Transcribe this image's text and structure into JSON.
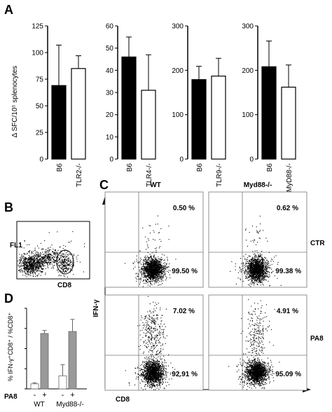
{
  "panels": {
    "A": "A",
    "B": "B",
    "C": "C",
    "D": "D"
  },
  "chart_data": [
    {
      "panel": "A",
      "type": "bar",
      "ylabel": "Δ SFC/10⁵ splenocytes",
      "series_colors": [
        "#000000",
        "#ffffff"
      ],
      "subplots": [
        {
          "categories": [
            "B6",
            "TLR2-/-"
          ],
          "values": [
            69,
            85
          ],
          "errors": [
            38,
            12
          ],
          "ylim": [
            0,
            125
          ],
          "yticks": [
            "0",
            "25",
            "50",
            "75",
            "100",
            "125"
          ]
        },
        {
          "categories": [
            "B6",
            "TLR4-/-"
          ],
          "values": [
            46,
            31
          ],
          "errors": [
            9,
            16
          ],
          "ylim": [
            0,
            60
          ],
          "yticks": [
            "0",
            "10",
            "20",
            "30",
            "40",
            "50",
            "60"
          ]
        },
        {
          "categories": [
            "B6",
            "TLR9-/-"
          ],
          "values": [
            179,
            187
          ],
          "errors": [
            30,
            40
          ],
          "ylim": [
            0,
            300
          ],
          "yticks": [
            "0",
            "100",
            "200",
            "300"
          ]
        },
        {
          "categories": [
            "B6",
            "MyD88-/-"
          ],
          "values": [
            208,
            162
          ],
          "errors": [
            58,
            50
          ],
          "ylim": [
            0,
            300
          ],
          "yticks": [
            "0",
            "100",
            "200",
            "300"
          ]
        }
      ]
    },
    {
      "panel": "B",
      "type": "scatter",
      "xlabel": "CD8",
      "ylabel": "FL1"
    },
    {
      "panel": "C",
      "type": "scatter",
      "xlabel": "CD8",
      "ylabel": "IFN-γ",
      "columns": [
        "WT",
        "Myd88-/-"
      ],
      "rows": [
        "CTR",
        "PA8"
      ],
      "quadrants": [
        {
          "row": "CTR",
          "column": "WT",
          "upper": "0.50 %",
          "lower": "99.50 %"
        },
        {
          "row": "CTR",
          "column": "Myd88-/-",
          "upper": "0.62 %",
          "lower": "99.38 %"
        },
        {
          "row": "PA8",
          "column": "WT",
          "upper": "7.02 %",
          "lower": "92.91 %"
        },
        {
          "row": "PA8",
          "column": "Myd88-/-",
          "upper": "4.91 %",
          "lower": "95.09 %"
        }
      ]
    },
    {
      "panel": "D",
      "type": "bar",
      "ylabel": "% IFN-γ⁺CD8⁺ / %CD8⁺",
      "row_label": "PA8",
      "groups": [
        "WT",
        "Myd88-/-"
      ],
      "signs": [
        "-",
        "+",
        "-",
        "+"
      ],
      "values": [
        0.5,
        5.5,
        1.3,
        5.7
      ],
      "errors": [
        0.1,
        0.3,
        1.1,
        1.2
      ],
      "colors": [
        "#ffffff",
        "#999999",
        "#ffffff",
        "#999999"
      ],
      "ylim": [
        0,
        8
      ]
    }
  ]
}
